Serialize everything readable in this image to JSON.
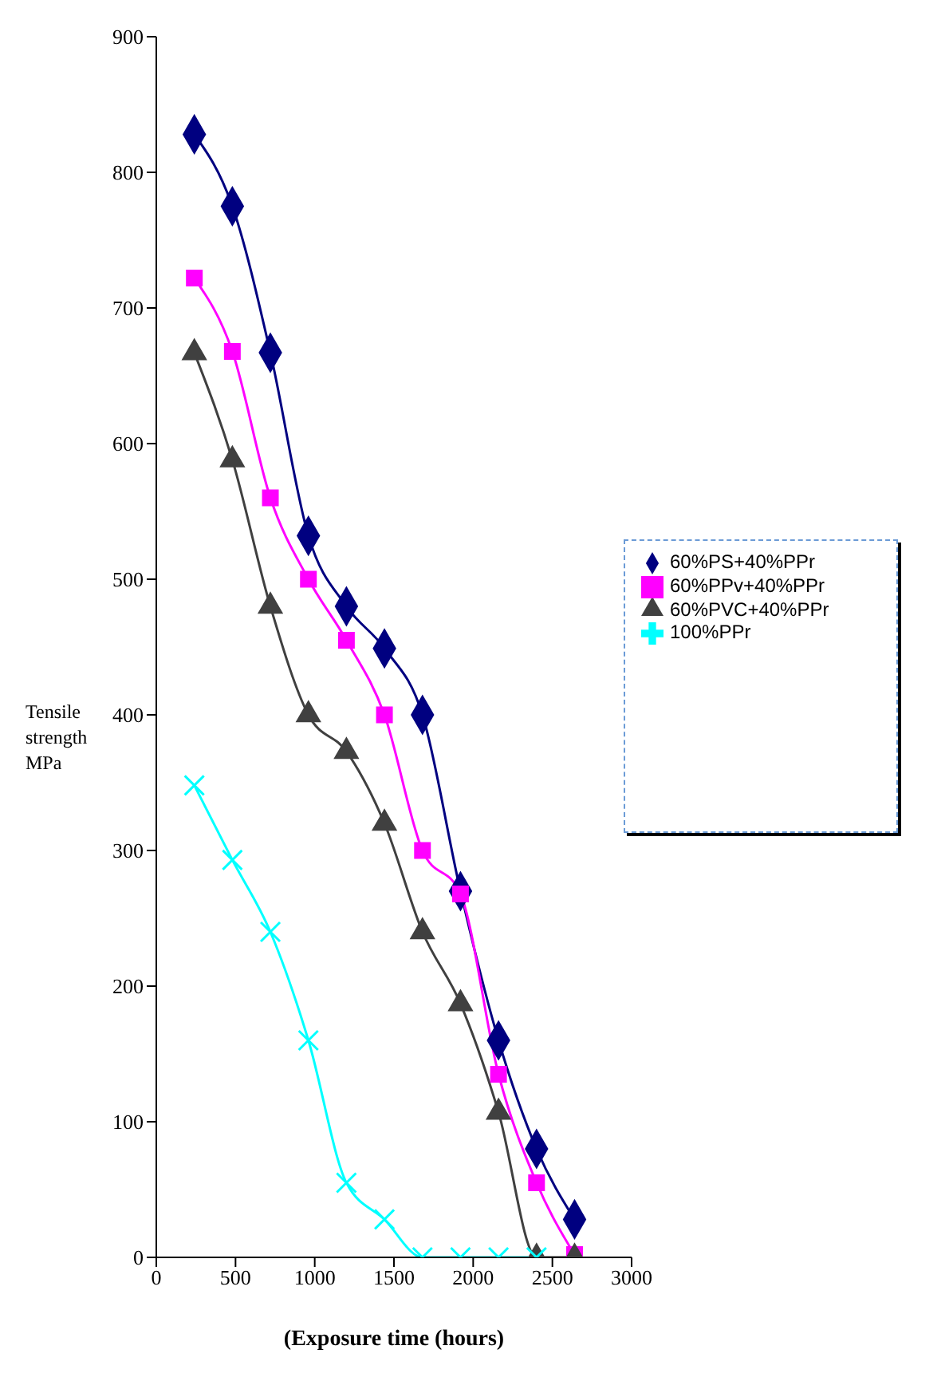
{
  "chart_data": {
    "type": "line",
    "xlabel": "(Exposure time (hours)",
    "ylabel": "Tensile strength MPa",
    "x": [
      240,
      480,
      720,
      960,
      1200,
      1440,
      1680,
      1920,
      2160,
      2400,
      2640
    ],
    "series": [
      {
        "name": "60%PS+40%PPr",
        "color": "#000080",
        "marker": "diamond",
        "values": [
          828,
          775,
          667,
          532,
          480,
          449,
          400,
          270,
          160,
          80,
          28
        ]
      },
      {
        "name": "60%PPv+40%PPr",
        "color": "#ff00ff",
        "marker": "square",
        "values": [
          722,
          668,
          560,
          500,
          455,
          400,
          300,
          268,
          135,
          55,
          2
        ]
      },
      {
        "name": "60%PVC+40%PPr",
        "color": "#404040",
        "marker": "triangle",
        "values": [
          667,
          588,
          480,
          400,
          373,
          320,
          240,
          187,
          107,
          0,
          0
        ]
      },
      {
        "name": "100%PPr",
        "color": "#00ffff",
        "marker": "cross",
        "values": [
          348,
          293,
          240,
          160,
          55,
          28,
          0,
          0,
          0,
          0,
          null
        ]
      }
    ],
    "xlim": [
      0,
      3000
    ],
    "xticks": [
      0,
      500,
      1000,
      1500,
      2000,
      2500,
      3000
    ],
    "ylim": [
      0,
      900
    ],
    "yticks": [
      0,
      100,
      200,
      300,
      400,
      500,
      600,
      700,
      800,
      900
    ],
    "grid": false,
    "legend": "right"
  }
}
